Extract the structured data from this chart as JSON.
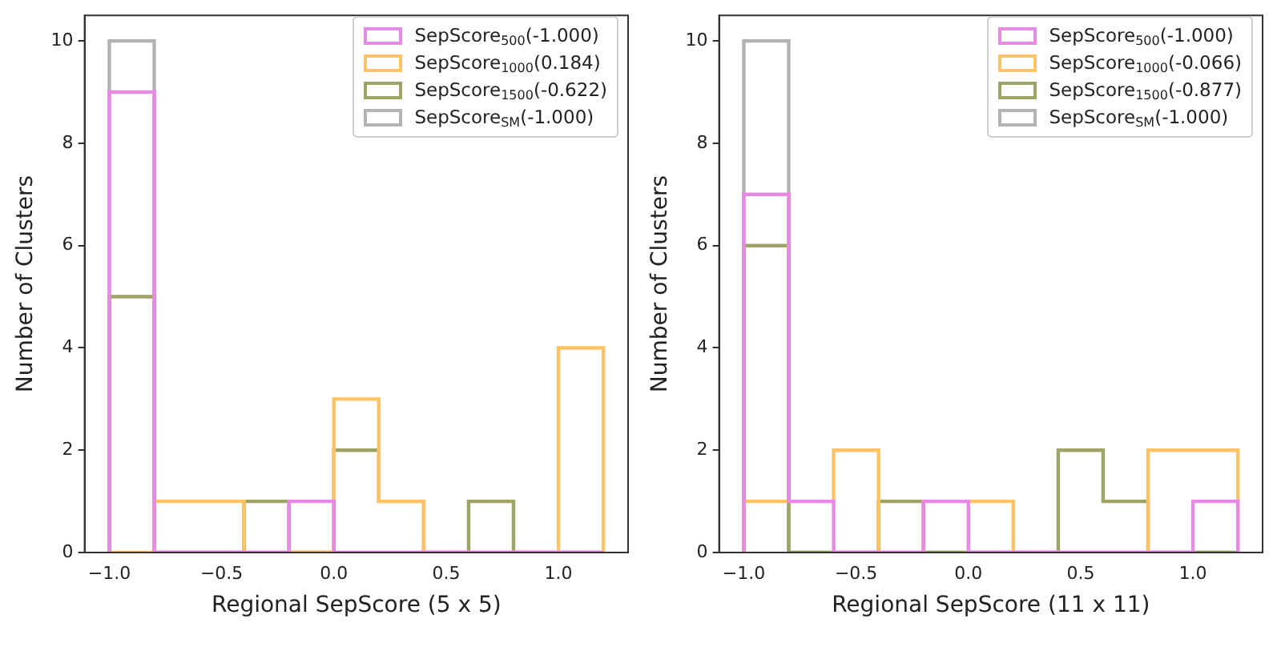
{
  "chart_data": [
    {
      "type": "histogram",
      "xlabel": "Regional SepScore (5 x 5)",
      "ylabel": "Number of Clusters",
      "bins": [
        -1.0,
        -0.8,
        -0.6,
        -0.4,
        -0.2,
        0.0,
        0.2,
        0.4,
        0.6,
        0.8,
        1.0,
        1.2
      ],
      "series": [
        {
          "name": "SepScore$_{500}$(-1.000)",
          "color": "#e68ae6",
          "values": [
            9,
            0,
            0,
            0,
            1,
            0,
            0,
            0,
            0,
            0,
            0
          ]
        },
        {
          "name": "SepScore$_{1000}$(0.184)",
          "color": "#ffc266",
          "values": [
            0,
            1,
            1,
            0,
            0,
            3,
            1,
            0,
            0,
            0,
            4
          ]
        },
        {
          "name": "SepScore$_{1500}$(-0.622)",
          "color": "#9fa366",
          "values": [
            5,
            0,
            0,
            1,
            0,
            2,
            1,
            0,
            1,
            0,
            0
          ]
        },
        {
          "name": "SepScore$_{SM}$(-1.000)",
          "color": "#b3b3b3",
          "values": [
            10,
            0,
            0,
            0,
            0,
            0,
            0,
            0,
            0,
            0,
            0
          ]
        }
      ],
      "xlim": [
        -1.11,
        1.31
      ],
      "ylim": [
        0,
        10.5
      ],
      "xticks": [
        {
          "value": -1,
          "label": "−1.0"
        },
        {
          "value": -0.5,
          "label": "−0.5"
        },
        {
          "value": 0,
          "label": "0.0"
        },
        {
          "value": 0.5,
          "label": "0.5"
        },
        {
          "value": 1,
          "label": "1.0"
        }
      ],
      "yticks": [
        0,
        2,
        4,
        6,
        8,
        10
      ],
      "grid": false,
      "legend": "top right"
    },
    {
      "type": "histogram",
      "xlabel": "Regional SepScore (11 x 11)",
      "ylabel": "Number of Clusters",
      "bins": [
        -1.0,
        -0.8,
        -0.6,
        -0.4,
        -0.2,
        0.0,
        0.2,
        0.4,
        0.6,
        0.8,
        1.0,
        1.2
      ],
      "series": [
        {
          "name": "SepScore$_{500}$(-1.000)",
          "color": "#e68ae6",
          "values": [
            7,
            1,
            0,
            0,
            1,
            0,
            0,
            0,
            0,
            0,
            1
          ]
        },
        {
          "name": "SepScore$_{1000}$(-0.066)",
          "color": "#ffc266",
          "values": [
            1,
            1,
            2,
            0,
            1,
            1,
            0,
            0,
            0,
            2,
            2
          ]
        },
        {
          "name": "SepScore$_{1500}$(-0.877)",
          "color": "#9fa366",
          "values": [
            6,
            0,
            0,
            1,
            0,
            0,
            0,
            2,
            1,
            0,
            0
          ]
        },
        {
          "name": "SepScore$_{SM}$(-1.000)",
          "color": "#b3b3b3",
          "values": [
            10,
            0,
            0,
            0,
            0,
            0,
            0,
            0,
            0,
            0,
            0
          ]
        }
      ],
      "xlim": [
        -1.11,
        1.31
      ],
      "ylim": [
        0,
        10.5
      ],
      "xticks": [
        {
          "value": -1,
          "label": "−1.0"
        },
        {
          "value": -0.5,
          "label": "−0.5"
        },
        {
          "value": 0,
          "label": "0.0"
        },
        {
          "value": 0.5,
          "label": "0.5"
        },
        {
          "value": 1,
          "label": "1.0"
        }
      ],
      "yticks": [
        0,
        2,
        4,
        6,
        8,
        10
      ],
      "grid": false,
      "legend": "top right"
    }
  ]
}
